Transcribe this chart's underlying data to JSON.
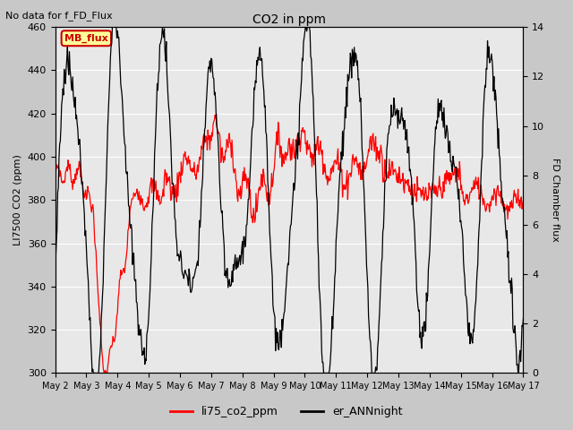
{
  "title": "CO2 in ppm",
  "subtitle": "No data for f_FD_Flux",
  "ylabel_left": "LI7500 CO2 (ppm)",
  "ylabel_right": "FD Chamber flux",
  "ylim_left": [
    300,
    460
  ],
  "ylim_right": [
    0,
    14
  ],
  "yticks_left": [
    300,
    320,
    340,
    360,
    380,
    400,
    420,
    440,
    460
  ],
  "yticks_right": [
    0,
    2,
    4,
    6,
    8,
    10,
    12,
    14
  ],
  "xticklabels": [
    "May 2",
    "May 3",
    "May 4",
    "May 5",
    "May 6",
    "May 7",
    "May 8",
    "May 9",
    "May 10",
    "May 11",
    "May 12",
    "May 13",
    "May 14",
    "May 15",
    "May 16",
    "May 17"
  ],
  "legend_labels": [
    "li75_co2_ppm",
    "er_ANNnight"
  ],
  "legend_colors": [
    "red",
    "black"
  ],
  "line1_color": "red",
  "line2_color": "black",
  "fig_bg_color": "#c8c8c8",
  "plot_bg_color": "#e8e8e8",
  "annotation_box_color": "#ffff99",
  "annotation_box_edge": "#cc0000",
  "annotation_text": "MB_flux",
  "annotation_text_color": "#cc0000",
  "grid_color": "#ffffff"
}
